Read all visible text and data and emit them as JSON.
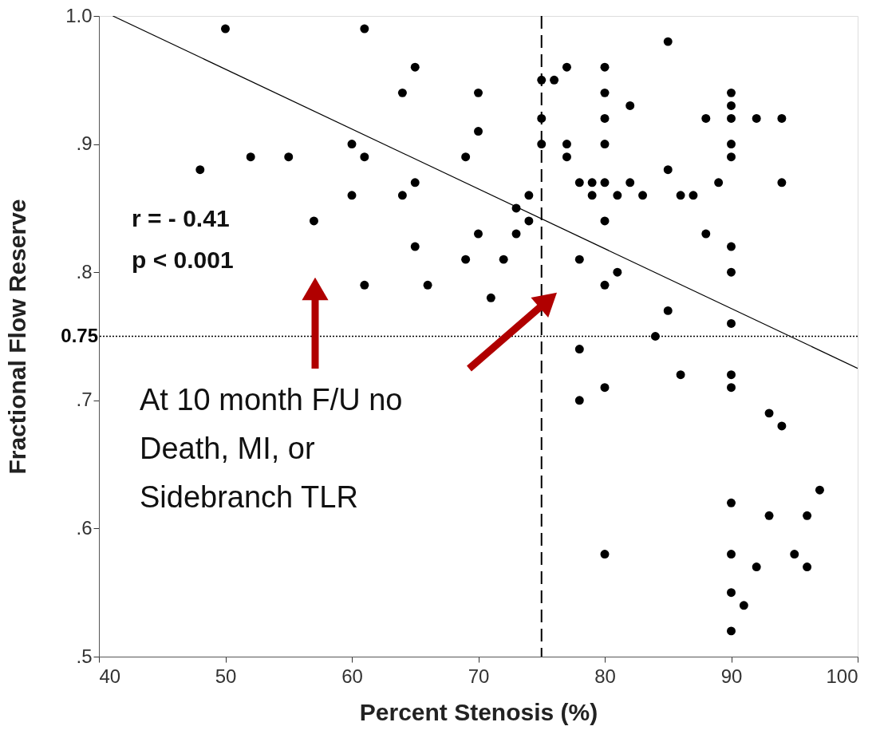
{
  "chart_data": {
    "type": "scatter",
    "xlabel": "Percent Stenosis (%)",
    "ylabel": "Fractional Flow Reserve",
    "xlim": [
      40,
      100
    ],
    "ylim": [
      0.5,
      1.0
    ],
    "xticks": [
      40,
      50,
      60,
      70,
      80,
      90,
      100
    ],
    "yticks": [
      {
        "value": 0.5,
        "label": ".5"
      },
      {
        "value": 0.6,
        "label": ".6"
      },
      {
        "value": 0.7,
        "label": ".7"
      },
      {
        "value": 0.8,
        "label": ".8"
      },
      {
        "value": 0.9,
        "label": ".9"
      },
      {
        "value": 1.0,
        "label": "1.0"
      }
    ],
    "grid": false,
    "marker": "circle",
    "series": [
      {
        "type": "scatter",
        "color": "#000000",
        "x": [
          48,
          50,
          52,
          55,
          57,
          60,
          60,
          61,
          61,
          61,
          64,
          64,
          65,
          65,
          65,
          66,
          69,
          69,
          70,
          70,
          70,
          71,
          72,
          73,
          73,
          74,
          74,
          75,
          75,
          75,
          76,
          77,
          77,
          77,
          78,
          78,
          78,
          78,
          79,
          79,
          80,
          80,
          80,
          80,
          80,
          80,
          80,
          80,
          80,
          81,
          81,
          82,
          82,
          83,
          84,
          85,
          85,
          85,
          86,
          86,
          87,
          88,
          88,
          89,
          90,
          90,
          90,
          90,
          90,
          90,
          90,
          90,
          90,
          90,
          90,
          90,
          90,
          90,
          91,
          92,
          92,
          93,
          93,
          94,
          94,
          94,
          95,
          96,
          96,
          97
        ],
        "values": [
          0.88,
          0.99,
          0.89,
          0.89,
          0.84,
          0.9,
          0.86,
          0.99,
          0.89,
          0.79,
          0.94,
          0.86,
          0.96,
          0.87,
          0.82,
          0.79,
          0.89,
          0.81,
          0.94,
          0.91,
          0.83,
          0.78,
          0.81,
          0.85,
          0.83,
          0.86,
          0.84,
          0.95,
          0.92,
          0.9,
          0.95,
          0.96,
          0.9,
          0.89,
          0.87,
          0.81,
          0.74,
          0.7,
          0.87,
          0.86,
          0.96,
          0.94,
          0.92,
          0.9,
          0.87,
          0.84,
          0.79,
          0.71,
          0.58,
          0.86,
          0.8,
          0.93,
          0.87,
          0.86,
          0.75,
          0.98,
          0.88,
          0.77,
          0.86,
          0.72,
          0.86,
          0.92,
          0.83,
          0.87,
          0.94,
          0.93,
          0.92,
          0.9,
          0.89,
          0.82,
          0.8,
          0.76,
          0.72,
          0.71,
          0.62,
          0.58,
          0.55,
          0.52,
          0.54,
          0.92,
          0.57,
          0.69,
          0.61,
          0.92,
          0.87,
          0.68,
          0.58,
          0.61,
          0.57,
          0.63
        ]
      },
      {
        "type": "line",
        "color": "#000000",
        "marker": "none",
        "line_style": "solid",
        "x": [
          41.1,
          100
        ],
        "values": [
          1.0,
          0.725
        ]
      }
    ],
    "ref_lines": [
      {
        "axis": "x",
        "value": 75,
        "line_style": "dashed",
        "color": "#000000"
      },
      {
        "axis": "y",
        "value": 0.75,
        "label": "0.75",
        "line_style": "dotted",
        "color": "#000000"
      }
    ],
    "annotations": [
      "r = - 0.41",
      "p < 0.001",
      "At 10 month F/U no\nDeath, MI, or\nSidebranch TLR"
    ]
  }
}
